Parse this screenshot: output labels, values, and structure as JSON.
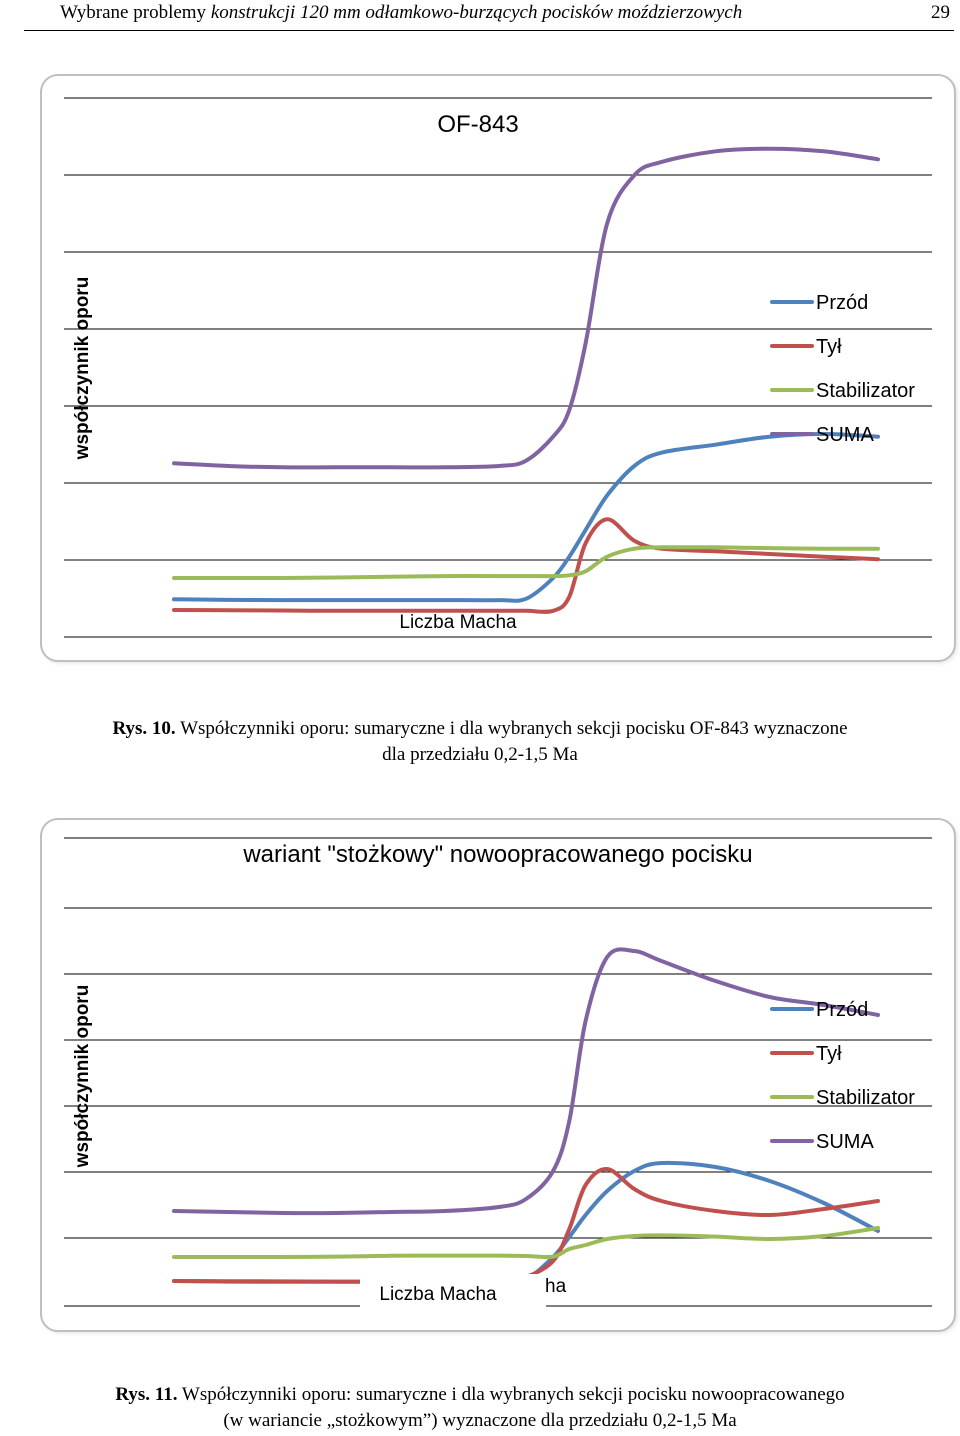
{
  "header": {
    "prefix": "Wybrane problemy ",
    "italic": "konstrukcji 120 mm odłamkowo-burzących pocisków moździerzowych",
    "page_number": "29"
  },
  "chart_data": [
    {
      "type": "line",
      "title": "OF-843",
      "xlabel": "Liczba Macha",
      "ylabel": "współczynnik oporu",
      "x": [
        0.2,
        0.3,
        0.4,
        0.5,
        0.6,
        0.7,
        0.8,
        0.85,
        0.9,
        0.93,
        0.96,
        1.0,
        1.05,
        1.1,
        1.2,
        1.3,
        1.4,
        1.5
      ],
      "series": [
        {
          "name": "Przód",
          "color": "#4f81bd",
          "values": [
            0.04,
            0.038,
            0.037,
            0.037,
            0.037,
            0.037,
            0.037,
            0.042,
            0.12,
            0.2,
            0.3,
            0.43,
            0.54,
            0.59,
            0.62,
            0.65,
            0.66,
            0.65
          ]
        },
        {
          "name": "Tył",
          "color": "#c0504d",
          "values": [
            0.0,
            -0.001,
            -0.002,
            -0.003,
            -0.003,
            -0.003,
            -0.003,
            -0.003,
            -0.003,
            0.05,
            0.25,
            0.34,
            0.26,
            0.23,
            0.22,
            0.21,
            0.2,
            0.19
          ]
        },
        {
          "name": "Stabilizator",
          "color": "#9bbb59",
          "values": [
            0.12,
            0.12,
            0.12,
            0.122,
            0.125,
            0.127,
            0.127,
            0.127,
            0.127,
            0.13,
            0.145,
            0.2,
            0.23,
            0.235,
            0.235,
            0.232,
            0.23,
            0.23
          ]
        },
        {
          "name": "SUMA",
          "color": "#8064a2",
          "values": [
            0.55,
            0.54,
            0.535,
            0.535,
            0.535,
            0.535,
            0.54,
            0.56,
            0.65,
            0.75,
            1.0,
            1.45,
            1.63,
            1.68,
            1.72,
            1.73,
            1.72,
            1.69
          ]
        }
      ]
    },
    {
      "type": "line",
      "title": "wariant \"stożkowy\" nowoopracowanego pocisku",
      "xlabel": "Liczba Macha",
      "ylabel": "współczynnik oporu",
      "x": [
        0.2,
        0.3,
        0.4,
        0.5,
        0.6,
        0.7,
        0.8,
        0.85,
        0.9,
        0.93,
        0.96,
        1.0,
        1.05,
        1.1,
        1.2,
        1.3,
        1.4,
        1.5
      ],
      "series": [
        {
          "name": "Przód",
          "color": "#4f81bd",
          "values": [
            0.0,
            -0.003,
            -0.004,
            -0.004,
            -0.003,
            -0.002,
            0.0,
            0.01,
            0.12,
            0.22,
            0.33,
            0.45,
            0.55,
            0.59,
            0.57,
            0.5,
            0.39,
            0.25
          ]
        },
        {
          "name": "Tył",
          "color": "#c0504d",
          "values": [
            0.0,
            -0.001,
            -0.002,
            -0.003,
            -0.003,
            -0.003,
            0.0,
            0.02,
            0.1,
            0.26,
            0.48,
            0.56,
            0.46,
            0.4,
            0.35,
            0.33,
            0.36,
            0.4
          ]
        },
        {
          "name": "Stabilizator",
          "color": "#9bbb59",
          "values": [
            0.12,
            0.12,
            0.12,
            0.122,
            0.126,
            0.127,
            0.127,
            0.125,
            0.122,
            0.16,
            0.18,
            0.21,
            0.225,
            0.228,
            0.222,
            0.21,
            0.225,
            0.265
          ]
        },
        {
          "name": "SUMA",
          "color": "#8064a2",
          "values": [
            0.35,
            0.345,
            0.34,
            0.34,
            0.345,
            0.35,
            0.37,
            0.41,
            0.55,
            0.8,
            1.3,
            1.62,
            1.65,
            1.6,
            1.5,
            1.42,
            1.38,
            1.33
          ]
        }
      ]
    }
  ],
  "captions": [
    {
      "label": "Rys. 10.",
      "line1": " Współczynniki oporu: sumaryczne i dla wybranych sekcji pocisku OF-843 wyznaczone",
      "line2": "dla przedziału 0,2-1,5 Ma"
    },
    {
      "label": "Rys. 11.",
      "line1": " Współczynniki oporu: sumaryczne i dla wybranych sekcji pocisku nowoopracowanego",
      "line2": "(w wariancie „stożkowym”) wyznaczone dla przedziału 0,2-1,5 Ma"
    }
  ],
  "chart2_xlabel_artifact": "ha"
}
